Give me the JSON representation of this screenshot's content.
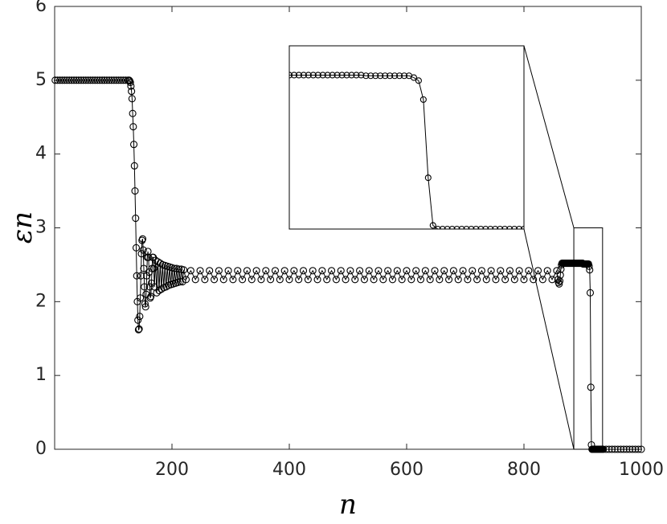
{
  "chart_data": [
    {
      "type": "line",
      "xlabel": "n",
      "ylabel": "εn",
      "color": "#000000",
      "xlim": [
        0,
        1000
      ],
      "ylim": [
        0,
        6
      ],
      "xticks": [
        200,
        400,
        600,
        800,
        1000
      ],
      "yticks": [
        0,
        1,
        2,
        3,
        4,
        5,
        6
      ],
      "x": [
        1,
        5,
        9,
        13,
        17,
        21,
        25,
        29,
        33,
        37,
        41,
        45,
        49,
        53,
        57,
        61,
        65,
        69,
        73,
        77,
        81,
        85,
        89,
        93,
        97,
        101,
        105,
        109,
        113,
        117,
        121,
        125,
        127,
        128,
        129,
        130,
        131,
        132,
        133,
        134,
        135,
        136,
        137,
        138,
        139,
        140,
        141,
        142,
        143,
        144,
        145,
        146,
        147,
        148,
        149,
        150,
        151,
        152,
        153,
        154,
        155,
        156,
        157,
        158,
        159,
        160,
        161,
        162,
        163,
        164,
        165,
        166,
        167,
        168,
        169,
        170,
        172,
        174,
        176,
        178,
        180,
        182,
        184,
        186,
        188,
        190,
        192,
        194,
        196,
        198,
        200,
        202,
        204,
        206,
        208,
        210,
        212,
        214,
        216,
        218,
        220,
        224,
        232,
        240,
        248,
        256,
        264,
        272,
        280,
        288,
        296,
        304,
        312,
        320,
        328,
        336,
        344,
        352,
        360,
        368,
        376,
        384,
        392,
        400,
        408,
        416,
        424,
        432,
        440,
        448,
        456,
        464,
        472,
        480,
        488,
        496,
        504,
        512,
        520,
        528,
        536,
        544,
        552,
        560,
        568,
        576,
        584,
        592,
        600,
        608,
        616,
        624,
        632,
        640,
        648,
        656,
        664,
        672,
        680,
        688,
        696,
        704,
        712,
        720,
        728,
        736,
        744,
        752,
        760,
        768,
        776,
        784,
        792,
        800,
        808,
        816,
        824,
        832,
        840,
        848,
        856,
        858,
        859,
        860,
        861,
        862,
        863,
        864,
        865,
        866,
        867,
        868,
        869,
        870,
        871,
        872,
        873,
        874,
        875,
        876,
        877,
        878,
        879,
        880,
        881,
        882,
        883,
        884,
        885,
        886,
        887,
        888,
        889,
        890,
        891,
        892,
        893,
        894,
        895,
        896,
        897,
        898,
        899,
        900,
        901,
        902,
        903,
        904,
        905,
        906,
        907,
        908,
        909,
        910,
        911,
        912,
        913,
        914,
        915,
        916,
        917,
        918,
        919,
        920,
        921,
        922,
        923,
        924,
        925,
        926,
        927,
        928,
        929,
        930,
        931,
        932,
        933,
        934,
        935,
        940,
        945,
        950,
        955,
        960,
        965,
        970,
        975,
        980,
        985,
        990,
        995,
        1000
      ],
      "values": [
        5,
        5,
        5,
        5,
        5,
        5,
        5,
        5,
        5,
        5,
        5,
        5,
        5,
        5,
        5,
        5,
        5,
        5,
        5,
        5,
        5,
        5,
        5,
        5,
        5,
        5,
        5,
        5,
        5,
        5,
        5,
        5,
        5,
        4.99,
        4.97,
        4.92,
        4.85,
        4.75,
        4.55,
        4.37,
        4.13,
        3.84,
        3.5,
        3.13,
        2.73,
        2.35,
        2.0,
        1.75,
        1.62,
        1.63,
        1.8,
        2.05,
        2.35,
        2.65,
        2.83,
        2.85,
        2.7,
        2.45,
        2.2,
        1.97,
        1.93,
        2.1,
        2.35,
        2.6,
        2.68,
        2.6,
        2.4,
        2.2,
        2.05,
        2.07,
        2.25,
        2.45,
        2.6,
        2.6,
        2.45,
        2.2,
        2.56,
        2.12,
        2.54,
        2.15,
        2.52,
        2.17,
        2.5,
        2.19,
        2.49,
        2.2,
        2.48,
        2.22,
        2.47,
        2.23,
        2.46,
        2.24,
        2.45,
        2.25,
        2.45,
        2.26,
        2.44,
        2.27,
        2.44,
        2.27,
        2.43,
        2.3,
        2.42,
        2.3,
        2.42,
        2.3,
        2.42,
        2.3,
        2.42,
        2.3,
        2.42,
        2.3,
        2.42,
        2.3,
        2.42,
        2.3,
        2.42,
        2.3,
        2.42,
        2.3,
        2.42,
        2.3,
        2.42,
        2.3,
        2.42,
        2.3,
        2.42,
        2.3,
        2.42,
        2.3,
        2.42,
        2.3,
        2.42,
        2.3,
        2.42,
        2.3,
        2.42,
        2.3,
        2.42,
        2.3,
        2.42,
        2.3,
        2.42,
        2.3,
        2.42,
        2.3,
        2.42,
        2.3,
        2.42,
        2.3,
        2.42,
        2.3,
        2.42,
        2.3,
        2.42,
        2.3,
        2.42,
        2.3,
        2.42,
        2.3,
        2.42,
        2.3,
        2.42,
        2.3,
        2.42,
        2.3,
        2.42,
        2.3,
        2.42,
        2.3,
        2.42,
        2.3,
        2.42,
        2.3,
        2.42,
        2.3,
        2.42,
        2.3,
        2.42,
        2.3,
        2.42,
        2.3,
        2.26,
        2.24,
        2.28,
        2.36,
        2.44,
        2.5,
        2.52,
        2.52,
        2.52,
        2.52,
        2.52,
        2.52,
        2.52,
        2.52,
        2.52,
        2.52,
        2.52,
        2.52,
        2.52,
        2.52,
        2.52,
        2.52,
        2.52,
        2.52,
        2.52,
        2.52,
        2.52,
        2.52,
        2.52,
        2.52,
        2.52,
        2.52,
        2.52,
        2.52,
        2.52,
        2.52,
        2.52,
        2.52,
        2.52,
        2.52,
        2.52,
        2.52,
        2.51,
        2.51,
        2.51,
        2.51,
        2.51,
        2.51,
        2.51,
        2.51,
        2.51,
        2.51,
        2.48,
        2.43,
        2.12,
        0.84,
        0.06,
        0,
        0,
        0,
        0,
        0,
        0,
        0,
        0,
        0,
        0,
        0,
        0,
        0,
        0,
        0,
        0,
        0,
        0,
        0,
        0,
        0,
        0,
        0,
        0,
        0,
        0,
        0,
        0,
        0,
        0,
        0,
        0,
        0
      ]
    },
    {
      "type": "inset",
      "xlim": [
        885,
        934
      ],
      "ylim": [
        0,
        3
      ]
    }
  ]
}
